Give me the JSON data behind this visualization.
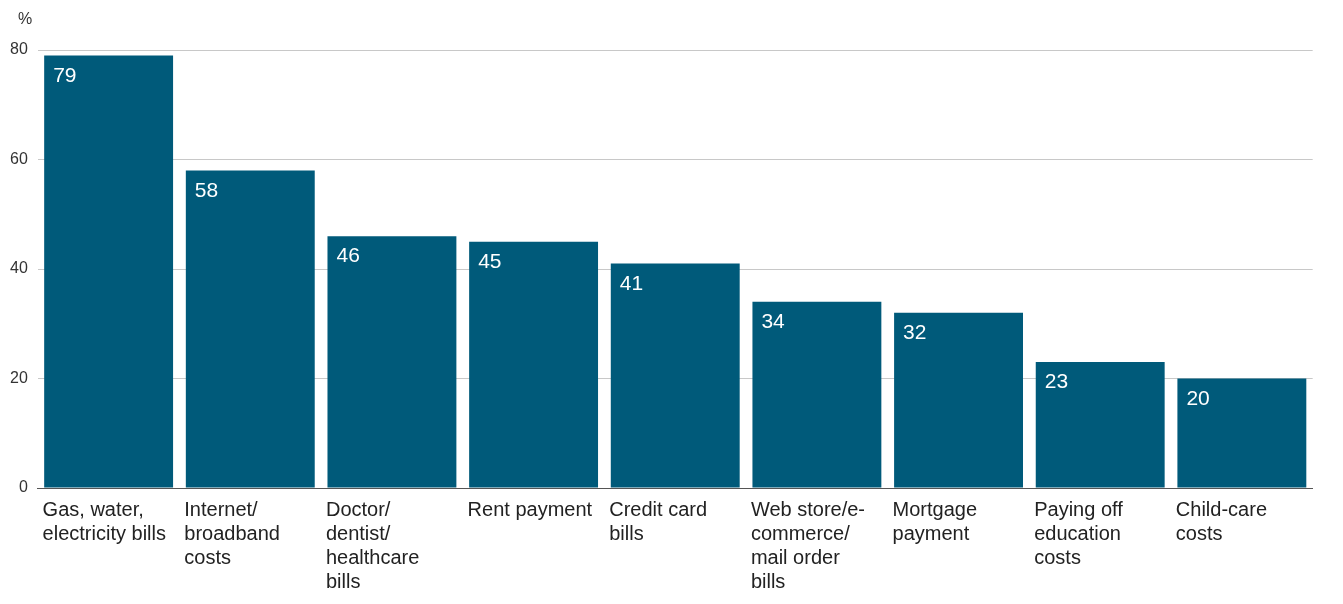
{
  "chart_data": {
    "type": "bar",
    "ylabel": "%",
    "categories": [
      "Gas, water, electricity bills",
      "Internet/broadband costs",
      "Doctor/dentist/healthcare bills",
      "Rent payment",
      "Credit card bills",
      "Web store/e-commerce/mail order bills",
      "Mortgage payment",
      "Paying off education costs",
      "Child-care costs"
    ],
    "values": [
      79,
      58,
      46,
      45,
      41,
      34,
      32,
      23,
      20
    ],
    "color": "#005a7a",
    "ylim": [
      0,
      80
    ],
    "yticks": [
      0,
      20,
      40,
      60,
      80
    ],
    "grid": "y",
    "legend": false,
    "data_labels": true
  }
}
